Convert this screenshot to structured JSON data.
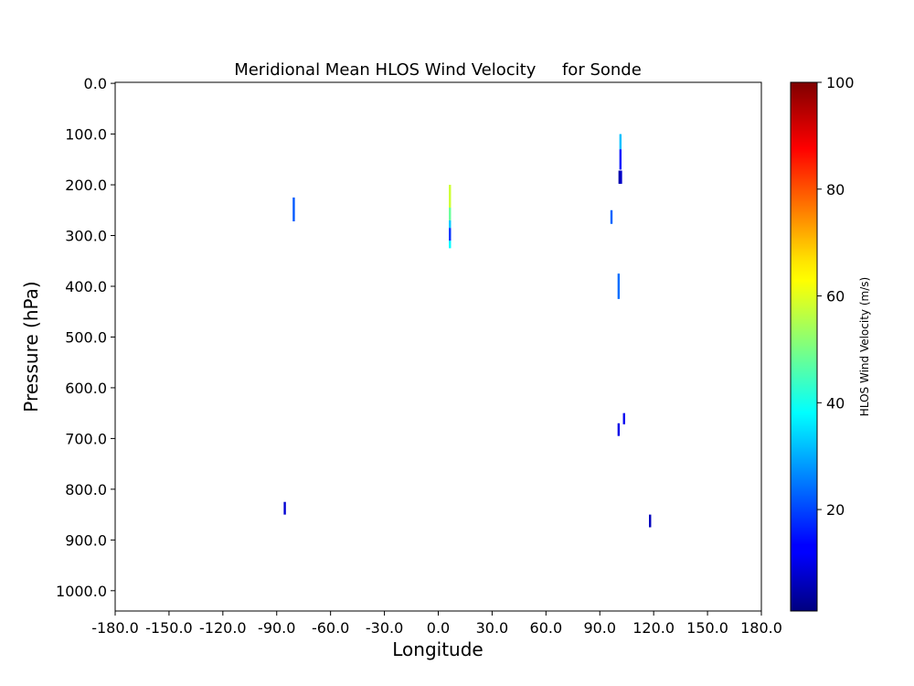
{
  "chart_data": {
    "type": "heatmap",
    "title": "Meridional Mean HLOS Wind Velocity     for Sonde",
    "xlabel": "Longitude",
    "ylabel": "Pressure (hPa)",
    "xlim": [
      -180,
      180
    ],
    "ylim": [
      1040,
      -2
    ],
    "y_inverted": true,
    "grid": false,
    "x_ticks": [
      -180,
      -150,
      -120,
      -90,
      -60,
      -30,
      0,
      30,
      60,
      90,
      120,
      150,
      180
    ],
    "x_tick_labels": [
      "-180.0",
      "-150.0",
      "-120.0",
      "-90.0",
      "-60.0",
      "-30.0",
      "0.0",
      "30.0",
      "60.0",
      "90.0",
      "120.0",
      "150.0",
      "180.0"
    ],
    "y_ticks": [
      0,
      100,
      200,
      300,
      400,
      500,
      600,
      700,
      800,
      900,
      1000
    ],
    "y_tick_labels": [
      "0.0",
      "100.0",
      "200.0",
      "300.0",
      "400.0",
      "500.0",
      "600.0",
      "700.0",
      "800.0",
      "900.0",
      "1000.0"
    ],
    "colorbar": {
      "label": "HLOS Wind Velocity (m/s)",
      "colormap": "jet",
      "range": [
        1,
        100
      ],
      "ticks": [
        20,
        40,
        60,
        80,
        100
      ],
      "tick_labels": [
        "20",
        "40",
        "60",
        "80",
        "100"
      ]
    },
    "segments": [
      {
        "lon": -80.5,
        "p_top": 225,
        "p_bottom": 272,
        "value": 22
      },
      {
        "lon": -85.5,
        "p_top": 825,
        "p_bottom": 850,
        "value": 9
      },
      {
        "lon": 6.5,
        "p_top": 200,
        "p_bottom": 245,
        "value": 58
      },
      {
        "lon": 6.5,
        "p_top": 245,
        "p_bottom": 270,
        "value": 48
      },
      {
        "lon": 6.5,
        "p_top": 270,
        "p_bottom": 285,
        "value": 33
      },
      {
        "lon": 6.5,
        "p_top": 285,
        "p_bottom": 310,
        "value": 18
      },
      {
        "lon": 6.5,
        "p_top": 310,
        "p_bottom": 325,
        "value": 38
      },
      {
        "lon": 101.5,
        "p_top": 100,
        "p_bottom": 130,
        "value": 32
      },
      {
        "lon": 101.5,
        "p_top": 130,
        "p_bottom": 170,
        "value": 15
      },
      {
        "lon": 101,
        "p_top": 172,
        "p_bottom": 198,
        "value": 5
      },
      {
        "lon": 101.8,
        "p_top": 172,
        "p_bottom": 198,
        "value": 8
      },
      {
        "lon": 96.5,
        "p_top": 250,
        "p_bottom": 277,
        "value": 23
      },
      {
        "lon": 100.5,
        "p_top": 375,
        "p_bottom": 425,
        "value": 24
      },
      {
        "lon": 103.5,
        "p_top": 650,
        "p_bottom": 672,
        "value": 12
      },
      {
        "lon": 100.5,
        "p_top": 670,
        "p_bottom": 695,
        "value": 11
      },
      {
        "lon": 118,
        "p_top": 850,
        "p_bottom": 875,
        "value": 7
      }
    ]
  }
}
